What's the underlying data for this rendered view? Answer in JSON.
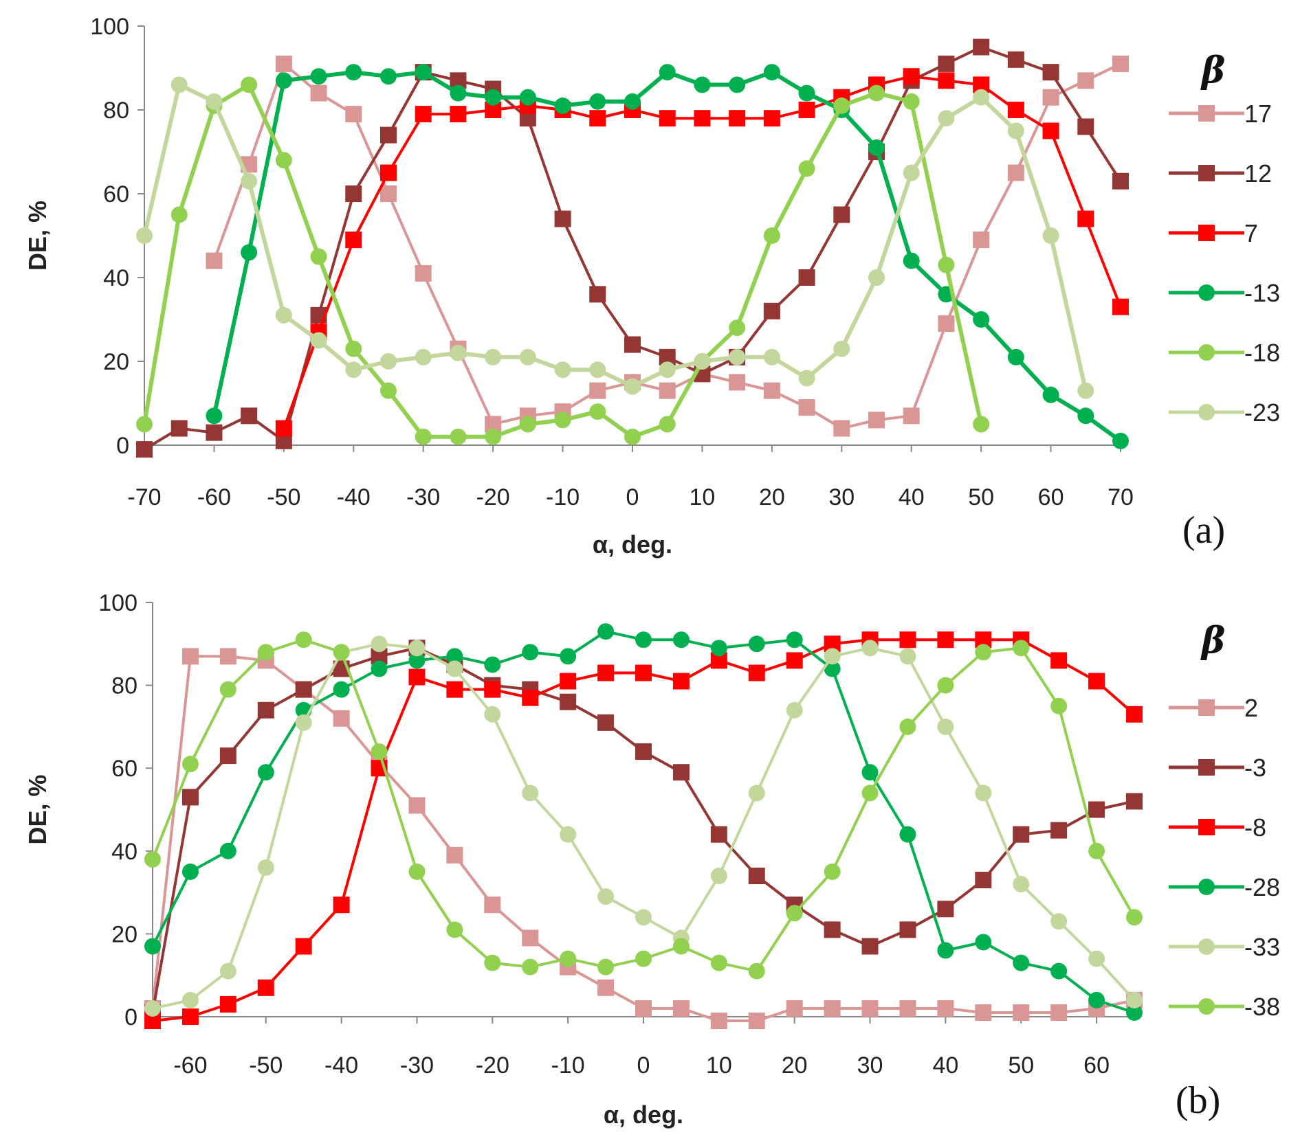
{
  "chart_data": [
    {
      "type": "line",
      "panel_label": "(a)",
      "xlabel": "α, deg.",
      "ylabel": "DE, %",
      "xlim": [
        -70,
        70
      ],
      "ylim": [
        0,
        100
      ],
      "xticks": [
        "-70",
        "-60",
        "-50",
        "-40",
        "-30",
        "-20",
        "-10",
        "0",
        "10",
        "20",
        "30",
        "40",
        "50",
        "60",
        "70"
      ],
      "yticks": [
        "0",
        "20",
        "40",
        "60",
        "80",
        "100"
      ],
      "legend_title": "β",
      "legend_position": "right",
      "series": [
        {
          "name": "17",
          "color": "#d99694",
          "marker": "square",
          "x": [
            -60,
            -55,
            -50,
            -45,
            -40,
            -35,
            -30,
            -25,
            -20,
            -15,
            -10,
            -5,
            0,
            5,
            10,
            15,
            20,
            25,
            30,
            35,
            40,
            45,
            50,
            55,
            60,
            65,
            70
          ],
          "y": [
            44,
            67,
            91,
            84,
            79,
            60,
            41,
            23,
            5,
            7,
            8,
            13,
            15,
            13,
            17,
            15,
            13,
            9,
            4,
            6,
            7,
            29,
            49,
            65,
            83,
            87,
            91
          ]
        },
        {
          "name": "12",
          "color": "#943634",
          "marker": "square",
          "x": [
            -70,
            -65,
            -60,
            -55,
            -50,
            -45,
            -40,
            -35,
            -30,
            -25,
            -20,
            -15,
            -10,
            -5,
            0,
            5,
            10,
            15,
            20,
            25,
            30,
            35,
            40,
            45,
            50,
            55,
            60,
            65,
            70
          ],
          "y": [
            -1,
            4,
            3,
            7,
            1,
            31,
            60,
            74,
            89,
            87,
            85,
            78,
            54,
            36,
            24,
            21,
            17,
            21,
            32,
            40,
            55,
            70,
            87,
            91,
            95,
            92,
            89,
            76,
            63
          ]
        },
        {
          "name": "7",
          "color": "#ff0000",
          "marker": "square",
          "x": [
            -50,
            -45,
            -40,
            -35,
            -30,
            -25,
            -20,
            -15,
            -10,
            -5,
            0,
            5,
            10,
            15,
            20,
            25,
            30,
            35,
            40,
            45,
            50,
            55,
            60,
            65,
            70
          ],
          "y": [
            4,
            27,
            49,
            65,
            79,
            79,
            80,
            81,
            80,
            78,
            80,
            78,
            78,
            78,
            78,
            80,
            83,
            86,
            88,
            87,
            86,
            80,
            75,
            54,
            33
          ]
        },
        {
          "name": "-13",
          "color": "#00b050",
          "marker": "circle",
          "x": [
            -60,
            -55,
            -50,
            -45,
            -40,
            -35,
            -30,
            -25,
            -20,
            -15,
            -10,
            -5,
            0,
            5,
            10,
            15,
            20,
            25,
            30,
            35,
            40,
            45,
            50,
            55,
            60,
            65,
            70
          ],
          "y": [
            7,
            46,
            87,
            88,
            89,
            88,
            89,
            84,
            83,
            83,
            81,
            82,
            82,
            89,
            86,
            86,
            89,
            84,
            80,
            71,
            44,
            36,
            30,
            21,
            12,
            7,
            1
          ]
        },
        {
          "name": "-18",
          "color": "#92d050",
          "marker": "circle",
          "x": [
            -70,
            -65,
            -60,
            -55,
            -50,
            -45,
            -40,
            -35,
            -30,
            -25,
            -20,
            -15,
            -10,
            -5,
            0,
            5,
            10,
            15,
            20,
            25,
            30,
            35,
            40,
            45,
            50
          ],
          "y": [
            5,
            55,
            81,
            86,
            68,
            45,
            23,
            13,
            2,
            2,
            2,
            5,
            6,
            8,
            2,
            5,
            20,
            28,
            50,
            66,
            81,
            84,
            82,
            43,
            5
          ]
        },
        {
          "name": "-23",
          "color": "#c3d69b",
          "marker": "circle",
          "x": [
            -70,
            -65,
            -60,
            -55,
            -50,
            -45,
            -40,
            -35,
            -30,
            -25,
            -20,
            -15,
            -10,
            -5,
            0,
            5,
            10,
            15,
            20,
            25,
            30,
            35,
            40,
            45,
            50,
            55,
            60,
            65
          ],
          "y": [
            50,
            86,
            82,
            63,
            31,
            25,
            18,
            20,
            21,
            22,
            21,
            21,
            18,
            18,
            14,
            18,
            20,
            21,
            21,
            16,
            23,
            40,
            65,
            78,
            83,
            75,
            50,
            13
          ]
        }
      ]
    },
    {
      "type": "line",
      "panel_label": "(b)",
      "xlabel": "α, deg.",
      "ylabel": "DE, %",
      "xlim": [
        -65,
        65
      ],
      "ylim": [
        0,
        100
      ],
      "xticks": [
        "-60",
        "-50",
        "-40",
        "-30",
        "-20",
        "-10",
        "0",
        "10",
        "20",
        "30",
        "40",
        "50",
        "60"
      ],
      "yticks": [
        "0",
        "20",
        "40",
        "60",
        "80",
        "100"
      ],
      "legend_title": "β",
      "legend_position": "right",
      "series": [
        {
          "name": "2",
          "color": "#d99694",
          "marker": "square",
          "x": [
            -65,
            -60,
            -55,
            -50,
            -45,
            -40,
            -35,
            -30,
            -25,
            -20,
            -15,
            -10,
            -5,
            0,
            5,
            10,
            15,
            20,
            25,
            30,
            35,
            40,
            45,
            50,
            55,
            60,
            65
          ],
          "y": [
            2,
            87,
            87,
            86,
            79,
            72,
            61,
            51,
            39,
            27,
            19,
            12,
            7,
            2,
            2,
            -1,
            -1,
            2,
            2,
            2,
            2,
            2,
            1,
            1,
            1,
            2,
            4
          ]
        },
        {
          "name": "-3",
          "color": "#943634",
          "marker": "square",
          "x": [
            -65,
            -60,
            -55,
            -50,
            -45,
            -40,
            -35,
            -30,
            -25,
            -20,
            -15,
            -10,
            -5,
            0,
            5,
            10,
            15,
            20,
            25,
            30,
            35,
            40,
            45,
            50,
            55,
            60,
            65
          ],
          "y": [
            1,
            53,
            63,
            74,
            79,
            84,
            87,
            89,
            85,
            80,
            79,
            76,
            71,
            64,
            59,
            44,
            34,
            27,
            21,
            17,
            21,
            26,
            33,
            44,
            45,
            50,
            52
          ]
        },
        {
          "name": "-8",
          "color": "#ff0000",
          "marker": "square",
          "x": [
            -65,
            -60,
            -55,
            -50,
            -45,
            -40,
            -35,
            -30,
            -25,
            -20,
            -15,
            -10,
            -5,
            0,
            5,
            10,
            15,
            20,
            25,
            30,
            35,
            40,
            45,
            50,
            55,
            60,
            65
          ],
          "y": [
            -1,
            0,
            3,
            7,
            17,
            27,
            60,
            82,
            79,
            79,
            77,
            81,
            83,
            83,
            81,
            86,
            83,
            86,
            90,
            91,
            91,
            91,
            91,
            91,
            86,
            81,
            73
          ]
        },
        {
          "name": "-28",
          "color": "#00b050",
          "marker": "circle",
          "x": [
            -65,
            -60,
            -55,
            -50,
            -45,
            -40,
            -35,
            -30,
            -25,
            -20,
            -15,
            -10,
            -5,
            0,
            5,
            10,
            15,
            20,
            25,
            30,
            35,
            40,
            45,
            50,
            55,
            60,
            65
          ],
          "y": [
            17,
            35,
            40,
            59,
            74,
            79,
            84,
            86,
            87,
            85,
            88,
            87,
            93,
            91,
            91,
            89,
            90,
            91,
            84,
            59,
            44,
            16,
            18,
            13,
            11,
            4,
            1
          ]
        },
        {
          "name": "-33",
          "color": "#c3d69b",
          "marker": "circle",
          "x": [
            -65,
            -60,
            -55,
            -50,
            -45,
            -40,
            -35,
            -30,
            -25,
            -20,
            -15,
            -10,
            -5,
            0,
            5,
            10,
            15,
            20,
            25,
            30,
            35,
            40,
            45,
            50,
            55,
            60,
            65
          ],
          "y": [
            2,
            4,
            11,
            36,
            71,
            88,
            90,
            89,
            84,
            73,
            54,
            44,
            29,
            24,
            19,
            34,
            54,
            74,
            87,
            89,
            87,
            70,
            54,
            32,
            23,
            14,
            4
          ]
        },
        {
          "name": "-38",
          "color": "#92d050",
          "marker": "circle",
          "x": [
            -65,
            -60,
            -55,
            -50,
            -45,
            -40,
            -35,
            -30,
            -25,
            -20,
            -15,
            -10,
            -5,
            0,
            5,
            10,
            15,
            20,
            25,
            30,
            35,
            40,
            45,
            50,
            55,
            60,
            65
          ],
          "y": [
            38,
            61,
            79,
            88,
            91,
            88,
            64,
            35,
            21,
            13,
            12,
            14,
            12,
            14,
            17,
            13,
            11,
            25,
            35,
            54,
            70,
            80,
            88,
            89,
            75,
            40,
            24
          ]
        }
      ]
    }
  ]
}
